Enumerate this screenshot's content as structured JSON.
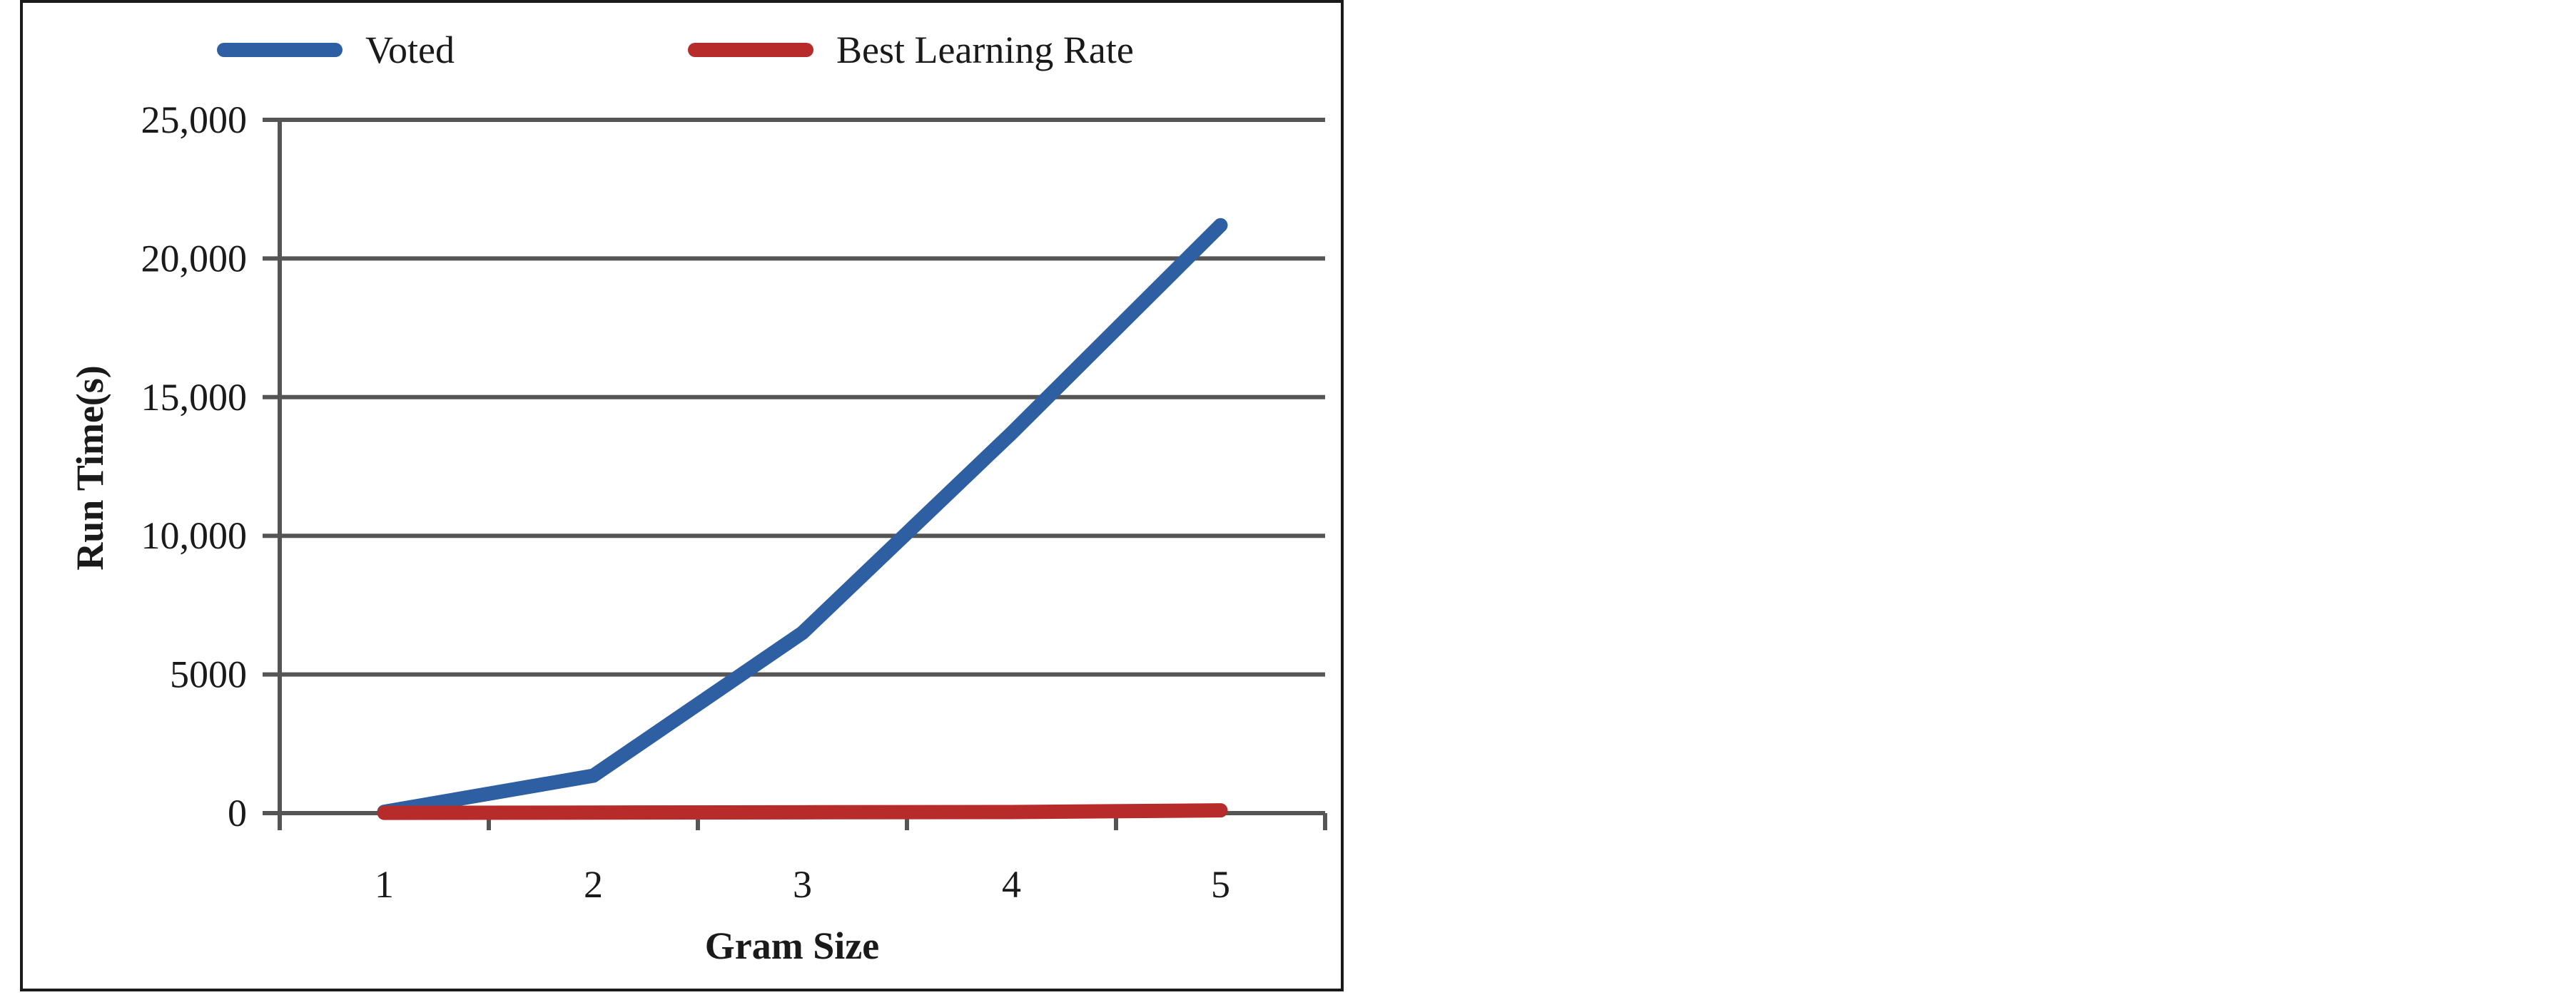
{
  "chart_data": {
    "type": "line",
    "title": "",
    "xlabel": "Gram Size",
    "ylabel": "Run Time(s)",
    "categories": [
      "1",
      "2",
      "3",
      "4",
      "5"
    ],
    "ylim": [
      0,
      25000
    ],
    "yticks": [
      0,
      5000,
      10000,
      15000,
      20000,
      25000
    ],
    "ytick_labels": [
      "0",
      "5000",
      "10,000",
      "15,000",
      "20,000",
      "25,000"
    ],
    "grid": "horizontal",
    "legend_position": "top",
    "series": [
      {
        "name": "Voted",
        "color": "#2e5fa3",
        "values": [
          50,
          1350,
          6500,
          13700,
          21200
        ]
      },
      {
        "name": "Best Learning Rate",
        "color": "#b82b2b",
        "values": [
          10,
          20,
          30,
          40,
          100
        ]
      }
    ]
  }
}
